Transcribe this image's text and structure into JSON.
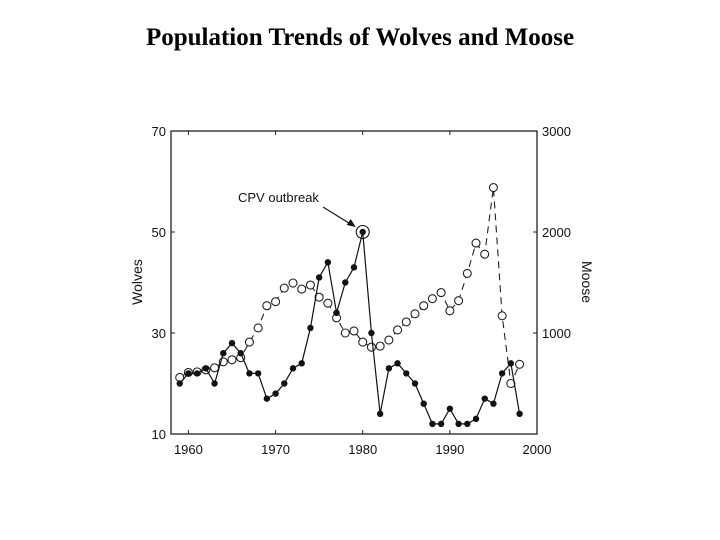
{
  "title": "Population Trends of Wolves and Moose",
  "chart_data": {
    "type": "line",
    "title": "Population Trends of Wolves and Moose",
    "xlabel": "",
    "ylabel": "Wolves",
    "ylabel_right": "Moose",
    "xlim": [
      1958,
      2000
    ],
    "ylim": [
      10,
      70
    ],
    "ylim_right": [
      0,
      3000
    ],
    "x_ticks": [
      1960,
      1970,
      1980,
      1990,
      2000
    ],
    "y_ticks": [
      10,
      30,
      50,
      70
    ],
    "y_ticks_right": [
      1000,
      2000,
      3000
    ],
    "grid": false,
    "legend": null,
    "x": [
      1959,
      1960,
      1961,
      1962,
      1963,
      1964,
      1965,
      1966,
      1967,
      1968,
      1969,
      1970,
      1971,
      1972,
      1973,
      1974,
      1975,
      1976,
      1977,
      1978,
      1979,
      1980,
      1981,
      1982,
      1983,
      1984,
      1985,
      1986,
      1987,
      1988,
      1989,
      1990,
      1991,
      1992,
      1993,
      1994,
      1995,
      1996,
      1997,
      1998
    ],
    "series": [
      {
        "name": "Wolves",
        "axis": "left",
        "style": "solid line, filled circle markers",
        "values": [
          20,
          22,
          22,
          23,
          20,
          26,
          28,
          26,
          22,
          22,
          17,
          18,
          20,
          23,
          24,
          31,
          41,
          44,
          34,
          40,
          43,
          50,
          30,
          14,
          23,
          24,
          22,
          20,
          16,
          12,
          12,
          15,
          12,
          12,
          13,
          17,
          16,
          22,
          24,
          14
        ]
      },
      {
        "name": "Moose",
        "axis": "right",
        "style": "dashed line, open circle markers",
        "values": [
          560,
          610,
          615,
          635,
          655,
          715,
          735,
          755,
          910,
          1050,
          1270,
          1310,
          1445,
          1495,
          1435,
          1475,
          1355,
          1295,
          1150,
          1000,
          1020,
          910,
          860,
          870,
          930,
          1030,
          1110,
          1190,
          1270,
          1340,
          1400,
          1220,
          1320,
          1590,
          1890,
          1780,
          2440,
          1170,
          500,
          690
        ]
      }
    ],
    "annotations": [
      {
        "text": "CPV outbreak",
        "x": 1980,
        "y": 50,
        "series": "Wolves",
        "arrow": true
      }
    ]
  },
  "labels": {
    "annotation": "CPV outbreak",
    "y_left": "Wolves",
    "y_right": "Moose"
  }
}
